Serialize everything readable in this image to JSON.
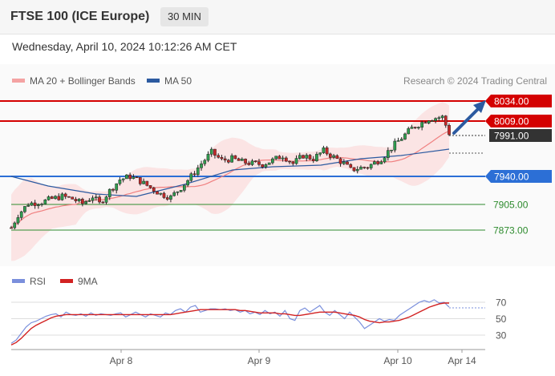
{
  "header": {
    "title": "FTSE 100 (ICE Europe)",
    "timeframe": "30 MIN"
  },
  "datetime": "Wednesday, April 10, 2024 10:12:26 AM CET",
  "legend": {
    "items": [
      {
        "label": "MA 20 + Bollinger Bands",
        "color": "#f4a3a3"
      },
      {
        "label": "MA 50",
        "color": "#2c5aa0"
      }
    ],
    "credit": "Research © 2024 Trading Central"
  },
  "rsi_legend": {
    "items": [
      {
        "label": "RSI",
        "color": "#7a8fdc"
      },
      {
        "label": "9MA",
        "color": "#d22222"
      }
    ]
  },
  "chart_data": {
    "type": "candlestick",
    "instrument": "FTSE 100 (ICE Europe)",
    "timeframe": "30 MIN",
    "x_ticks": [
      "Apr 8",
      "Apr 9",
      "Apr 10",
      "Apr 14"
    ],
    "price_range": [
      7840,
      8065
    ],
    "current_price": 7991.0,
    "levels": [
      {
        "value": 8034.0,
        "label": "8034.00",
        "kind": "resistance",
        "color": "#d40000"
      },
      {
        "value": 8009.0,
        "label": "8009.00",
        "kind": "resistance",
        "color": "#d40000"
      },
      {
        "value": 7991.0,
        "label": "7991.00",
        "kind": "current",
        "color": "#333333"
      },
      {
        "value": 7940.0,
        "label": "7940.00",
        "kind": "pivot",
        "color": "#2c6fd6"
      },
      {
        "value": 7905.0,
        "label": "7905.00",
        "kind": "support",
        "color": "#2e8b2e"
      },
      {
        "value": 7873.0,
        "label": "7873.00",
        "kind": "support",
        "color": "#2e8b2e"
      }
    ],
    "rsi": {
      "levels": [
        70,
        50,
        30
      ],
      "range": [
        18,
        82
      ],
      "values": [
        20,
        24,
        32,
        40,
        45,
        47,
        50,
        53,
        55,
        56,
        52,
        58,
        55,
        54,
        56,
        53,
        57,
        54,
        56,
        55,
        54,
        56,
        57,
        52,
        55,
        58,
        55,
        52,
        56,
        54,
        52,
        57,
        55,
        60,
        62,
        58,
        64,
        66,
        58,
        60,
        62,
        62,
        61,
        62,
        60,
        61,
        58,
        60,
        56,
        58,
        55,
        60,
        56,
        58,
        53,
        60,
        50,
        48,
        60,
        63,
        58,
        62,
        66,
        58,
        54,
        60,
        55,
        50,
        58,
        52,
        46,
        38,
        42,
        46,
        50,
        47,
        49,
        48,
        54,
        58,
        62,
        66,
        70,
        72,
        70,
        73,
        69,
        70,
        64
      ],
      "ma9": [
        18,
        21,
        26,
        32,
        38,
        42,
        45,
        48,
        51,
        53,
        54,
        55,
        55,
        55,
        55,
        55,
        55,
        55,
        55,
        55,
        55,
        55,
        55,
        55,
        55,
        55,
        55,
        55,
        55,
        55,
        55,
        55,
        55,
        56,
        57,
        58,
        59,
        60,
        61,
        61,
        61,
        61,
        61,
        61,
        61,
        61,
        60,
        60,
        59,
        58,
        57,
        57,
        57,
        57,
        56,
        56,
        55,
        54,
        54,
        55,
        56,
        57,
        58,
        58,
        58,
        58,
        57,
        56,
        55,
        54,
        52,
        49,
        47,
        46,
        45,
        46,
        46,
        47,
        48,
        50,
        52,
        55,
        58,
        61,
        64,
        66,
        68,
        69,
        69
      ]
    }
  }
}
